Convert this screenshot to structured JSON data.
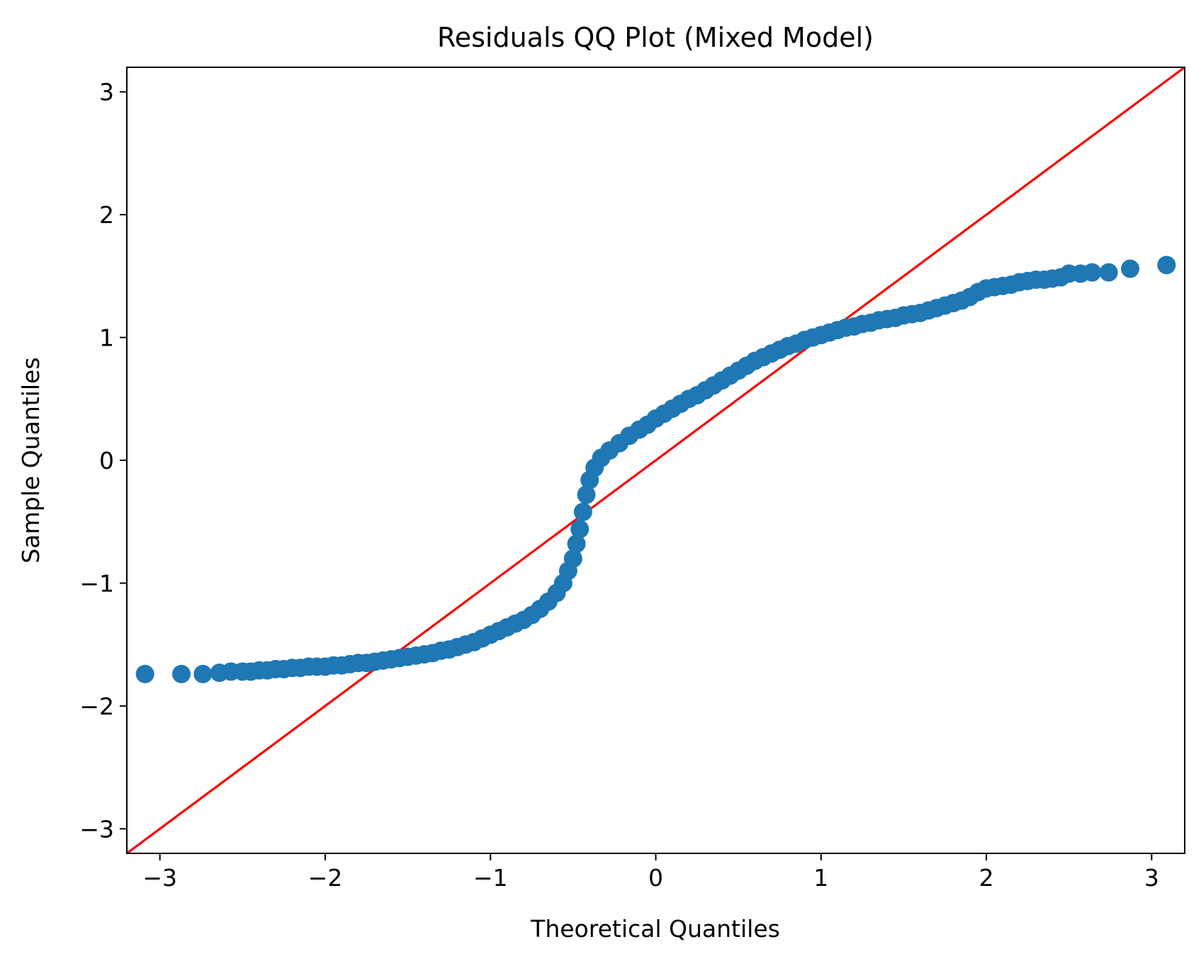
{
  "chart_data": {
    "type": "scatter",
    "title": "Residuals QQ Plot (Mixed Model)",
    "xlabel": "Theoretical Quantiles",
    "ylabel": "Sample Quantiles",
    "xlim": [
      -3.2,
      3.2
    ],
    "ylim": [
      -3.2,
      3.2
    ],
    "x_ticks": [
      -3,
      -2,
      -1,
      0,
      1,
      2,
      3
    ],
    "y_ticks": [
      -3,
      -2,
      -1,
      0,
      1,
      2,
      3
    ],
    "x_tick_labels": [
      "−3",
      "−2",
      "−1",
      "0",
      "1",
      "2",
      "3"
    ],
    "y_tick_labels": [
      "−3",
      "−2",
      "−1",
      "0",
      "1",
      "2",
      "3"
    ],
    "grid": false,
    "series": [
      {
        "kind": "scatter",
        "color": "#1f77b4",
        "points": [
          [
            -3.09,
            -1.74
          ],
          [
            -2.87,
            -1.74
          ],
          [
            -2.74,
            -1.74
          ],
          [
            -2.64,
            -1.73
          ],
          [
            -2.57,
            -1.72
          ],
          [
            -2.5,
            -1.72
          ],
          [
            -2.45,
            -1.72
          ],
          [
            -2.4,
            -1.71
          ],
          [
            -2.35,
            -1.71
          ],
          [
            -2.3,
            -1.7
          ],
          [
            -2.25,
            -1.7
          ],
          [
            -2.2,
            -1.69
          ],
          [
            -2.15,
            -1.69
          ],
          [
            -2.1,
            -1.68
          ],
          [
            -2.05,
            -1.68
          ],
          [
            -2.0,
            -1.68
          ],
          [
            -1.95,
            -1.67
          ],
          [
            -1.9,
            -1.67
          ],
          [
            -1.85,
            -1.66
          ],
          [
            -1.8,
            -1.65
          ],
          [
            -1.75,
            -1.65
          ],
          [
            -1.7,
            -1.64
          ],
          [
            -1.65,
            -1.63
          ],
          [
            -1.6,
            -1.62
          ],
          [
            -1.55,
            -1.61
          ],
          [
            -1.5,
            -1.6
          ],
          [
            -1.45,
            -1.59
          ],
          [
            -1.4,
            -1.58
          ],
          [
            -1.35,
            -1.57
          ],
          [
            -1.3,
            -1.55
          ],
          [
            -1.25,
            -1.54
          ],
          [
            -1.2,
            -1.52
          ],
          [
            -1.15,
            -1.5
          ],
          [
            -1.1,
            -1.48
          ],
          [
            -1.05,
            -1.45
          ],
          [
            -1.0,
            -1.42
          ],
          [
            -0.95,
            -1.39
          ],
          [
            -0.9,
            -1.36
          ],
          [
            -0.85,
            -1.33
          ],
          [
            -0.8,
            -1.3
          ],
          [
            -0.75,
            -1.26
          ],
          [
            -0.7,
            -1.21
          ],
          [
            -0.65,
            -1.15
          ],
          [
            -0.6,
            -1.08
          ],
          [
            -0.56,
            -1.0
          ],
          [
            -0.53,
            -0.9
          ],
          [
            -0.5,
            -0.8
          ],
          [
            -0.48,
            -0.68
          ],
          [
            -0.46,
            -0.56
          ],
          [
            -0.44,
            -0.42
          ],
          [
            -0.42,
            -0.28
          ],
          [
            -0.4,
            -0.16
          ],
          [
            -0.37,
            -0.06
          ],
          [
            -0.33,
            0.02
          ],
          [
            -0.28,
            0.08
          ],
          [
            -0.22,
            0.14
          ],
          [
            -0.16,
            0.2
          ],
          [
            -0.1,
            0.25
          ],
          [
            -0.05,
            0.29
          ],
          [
            0.0,
            0.34
          ],
          [
            0.05,
            0.38
          ],
          [
            0.1,
            0.42
          ],
          [
            0.15,
            0.46
          ],
          [
            0.2,
            0.5
          ],
          [
            0.25,
            0.53
          ],
          [
            0.3,
            0.57
          ],
          [
            0.35,
            0.61
          ],
          [
            0.4,
            0.65
          ],
          [
            0.45,
            0.69
          ],
          [
            0.5,
            0.73
          ],
          [
            0.55,
            0.77
          ],
          [
            0.6,
            0.81
          ],
          [
            0.65,
            0.84
          ],
          [
            0.7,
            0.87
          ],
          [
            0.75,
            0.9
          ],
          [
            0.8,
            0.93
          ],
          [
            0.85,
            0.95
          ],
          [
            0.9,
            0.98
          ],
          [
            0.95,
            1.0
          ],
          [
            1.0,
            1.02
          ],
          [
            1.05,
            1.04
          ],
          [
            1.1,
            1.06
          ],
          [
            1.15,
            1.08
          ],
          [
            1.2,
            1.09
          ],
          [
            1.25,
            1.11
          ],
          [
            1.3,
            1.12
          ],
          [
            1.35,
            1.14
          ],
          [
            1.4,
            1.15
          ],
          [
            1.45,
            1.16
          ],
          [
            1.5,
            1.18
          ],
          [
            1.55,
            1.19
          ],
          [
            1.6,
            1.2
          ],
          [
            1.65,
            1.22
          ],
          [
            1.7,
            1.24
          ],
          [
            1.75,
            1.26
          ],
          [
            1.8,
            1.28
          ],
          [
            1.85,
            1.3
          ],
          [
            1.9,
            1.33
          ],
          [
            1.95,
            1.37
          ],
          [
            2.0,
            1.4
          ],
          [
            2.05,
            1.41
          ],
          [
            2.1,
            1.42
          ],
          [
            2.15,
            1.43
          ],
          [
            2.2,
            1.45
          ],
          [
            2.25,
            1.46
          ],
          [
            2.3,
            1.47
          ],
          [
            2.35,
            1.47
          ],
          [
            2.4,
            1.48
          ],
          [
            2.45,
            1.49
          ],
          [
            2.5,
            1.52
          ],
          [
            2.57,
            1.52
          ],
          [
            2.64,
            1.53
          ],
          [
            2.74,
            1.53
          ],
          [
            2.87,
            1.56
          ],
          [
            3.09,
            1.59
          ]
        ]
      },
      {
        "kind": "line",
        "color": "#ff0000",
        "points": [
          [
            -3.2,
            -3.2
          ],
          [
            3.2,
            3.2
          ]
        ]
      }
    ]
  }
}
